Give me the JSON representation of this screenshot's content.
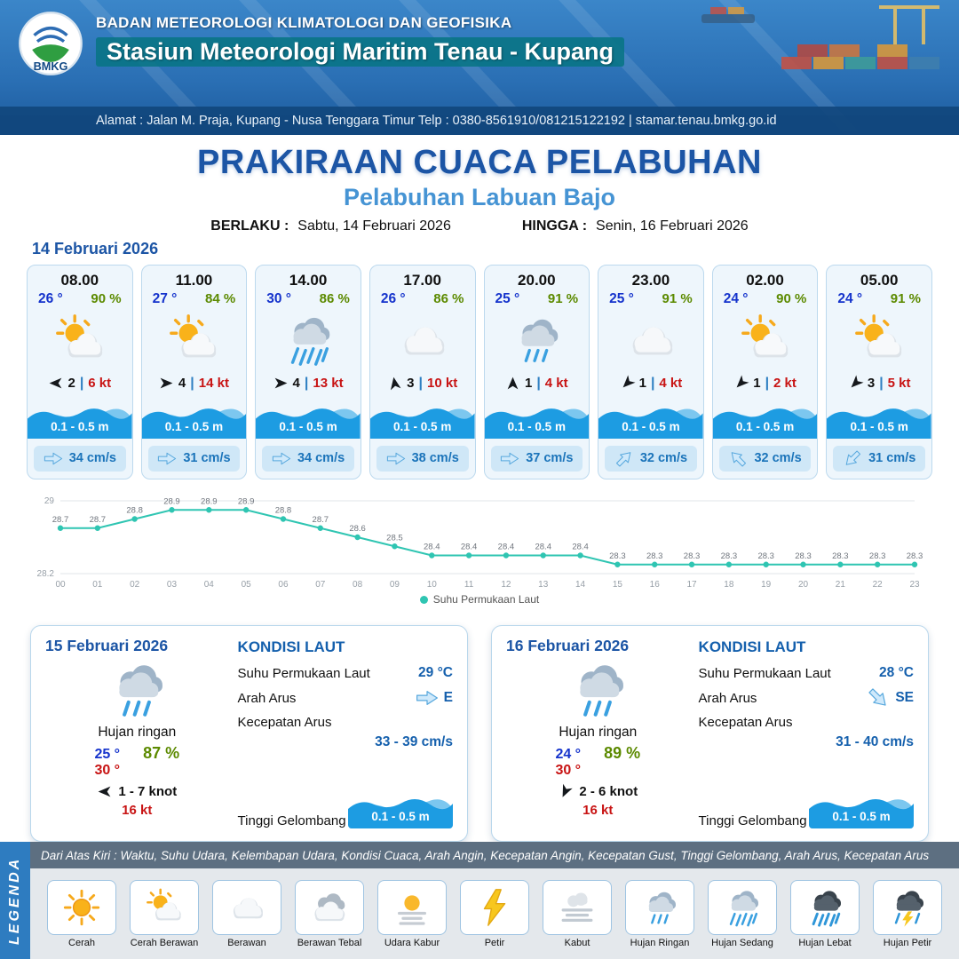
{
  "header": {
    "logo_text": "BMKG",
    "agency": "BADAN METEOROLOGI KLIMATOLOGI DAN GEOFISIKA",
    "station": "Stasiun Meteorologi Maritim Tenau - Kupang",
    "address": "Alamat : Jalan M. Praja, Kupang - Nusa Tenggara Timur Telp : 0380-8561910/081215122192  | stamar.tenau.bmkg.go.id"
  },
  "title": {
    "main": "PRAKIRAAN CUACA PELABUHAN",
    "port": "Pelabuhan Labuan Bajo",
    "valid_label": "BERLAKU :",
    "valid_value": "Sabtu, 14 Februari 2026",
    "until_label": "HINGGA :",
    "until_value": "Senin, 16 Februari 2026",
    "date_heading": "14 Februari 2026"
  },
  "misc": {
    "pipe": "|"
  },
  "colors": {
    "brand_blue": "#1c55a5",
    "port_blue": "#4694d4",
    "temp_blue": "#1533cc",
    "humidity_green": "#5c8a00",
    "wind_red": "#c81414",
    "wave_blue": "#1d9ce2",
    "current_text_blue": "#1b74ba",
    "sst_line_teal": "#2fc5b2"
  },
  "cards": [
    {
      "time": "08.00",
      "temp": "26 °",
      "humidity": "90 %",
      "icon": "cerah-berawan",
      "icon_ref": "#sym-suncloud",
      "wind_value": "2",
      "wind_speed": "6 kt",
      "wind_rot": 180,
      "wave": "0.1 - 0.5 m",
      "current": "34 cm/s",
      "current_rot": 0
    },
    {
      "time": "11.00",
      "temp": "27 °",
      "humidity": "84 %",
      "icon": "cerah-berawan",
      "icon_ref": "#sym-suncloud",
      "wind_value": "4",
      "wind_speed": "14 kt",
      "wind_rot": 0,
      "wave": "0.1 - 0.5 m",
      "current": "31 cm/s",
      "current_rot": 0
    },
    {
      "time": "14.00",
      "temp": "30 °",
      "humidity": "86 %",
      "icon": "hujan-sedang",
      "icon_ref": "#sym-rain2",
      "wind_value": "4",
      "wind_speed": "13 kt",
      "wind_rot": 0,
      "wave": "0.1 - 0.5 m",
      "current": "34 cm/s",
      "current_rot": 0
    },
    {
      "time": "17.00",
      "temp": "26 °",
      "humidity": "86 %",
      "icon": "berawan",
      "icon_ref": "#sym-cloud",
      "wind_value": "3",
      "wind_speed": "10 kt",
      "wind_rot": -100,
      "wave": "0.1 - 0.5 m",
      "current": "38 cm/s",
      "current_rot": 0
    },
    {
      "time": "20.00",
      "temp": "25 °",
      "humidity": "91 %",
      "icon": "hujan-ringan",
      "icon_ref": "#sym-rain1",
      "wind_value": "1",
      "wind_speed": "4 kt",
      "wind_rot": -90,
      "wave": "0.1 - 0.5 m",
      "current": "37 cm/s",
      "current_rot": 0
    },
    {
      "time": "23.00",
      "temp": "25 °",
      "humidity": "91 %",
      "icon": "berawan",
      "icon_ref": "#sym-cloud",
      "wind_value": "1",
      "wind_speed": "4 kt",
      "wind_rot": 135,
      "wave": "0.1 - 0.5 m",
      "current": "32 cm/s",
      "current_rot": -45
    },
    {
      "time": "02.00",
      "temp": "24 °",
      "humidity": "90 %",
      "icon": "cerah-berawan",
      "icon_ref": "#sym-suncloud",
      "wind_value": "1",
      "wind_speed": "2 kt",
      "wind_rot": 135,
      "wave": "0.1 - 0.5 m",
      "current": "32 cm/s",
      "current_rot": -135
    },
    {
      "time": "05.00",
      "temp": "24 °",
      "humidity": "91 %",
      "icon": "cerah-berawan",
      "icon_ref": "#sym-suncloud",
      "wind_value": "3",
      "wind_speed": "5 kt",
      "wind_rot": 135,
      "wave": "0.1 - 0.5 m",
      "current": "31 cm/s",
      "current_rot": 135
    }
  ],
  "chart_data": {
    "type": "line",
    "x": [
      "00",
      "01",
      "02",
      "03",
      "04",
      "05",
      "06",
      "07",
      "08",
      "09",
      "10",
      "11",
      "12",
      "13",
      "14",
      "15",
      "16",
      "17",
      "18",
      "19",
      "20",
      "21",
      "22",
      "23"
    ],
    "series": [
      {
        "name": "Suhu Permukaan Laut",
        "values": [
          28.7,
          28.7,
          28.8,
          28.9,
          28.9,
          28.9,
          28.8,
          28.7,
          28.6,
          28.5,
          28.4,
          28.4,
          28.4,
          28.4,
          28.4,
          28.3,
          28.3,
          28.3,
          28.3,
          28.3,
          28.3,
          28.3,
          28.3,
          28.3
        ]
      }
    ],
    "ylim": [
      28.2,
      29
    ],
    "line_color": "#2fc5b2",
    "legend_position": "bottom",
    "grid": "horizontal"
  },
  "daily": [
    {
      "date": "15 Februari 2026",
      "icon": "hujan-ringan",
      "icon_ref": "#sym-rain1",
      "condition": "Hujan ringan",
      "temp_min": "25 °",
      "humidity": "87 %",
      "temp_max": "30 °",
      "wind_range": "1 - 7 knot",
      "wind_rot": 180,
      "gust": "16 kt",
      "sea": {
        "heading": "KONDISI LAUT",
        "sst_label": "Suhu Permukaan Laut",
        "sst": "29 °C",
        "dir_label": "Arah Arus",
        "dir": "E",
        "dir_rot": 0,
        "speed_label": "Kecepatan Arus",
        "speed": "33 - 39 cm/s",
        "wave_label": "Tinggi Gelombang",
        "wave": "0.1 - 0.5 m"
      }
    },
    {
      "date": "16 Februari 2026",
      "icon": "hujan-ringan",
      "icon_ref": "#sym-rain1",
      "condition": "Hujan ringan",
      "temp_min": "24 °",
      "humidity": "89 %",
      "temp_max": "30 °",
      "wind_range": "2 - 6 knot",
      "wind_rot": 115,
      "gust": "16 kt",
      "sea": {
        "heading": "KONDISI LAUT",
        "sst_label": "Suhu Permukaan Laut",
        "sst": "28 °C",
        "dir_label": "Arah Arus",
        "dir": "SE",
        "dir_rot": 45,
        "speed_label": "Kecepatan Arus",
        "speed": "31 - 40 cm/s",
        "wave_label": "Tinggi Gelombang",
        "wave": "0.1 - 0.5 m"
      }
    }
  ],
  "legend": {
    "title": "LEGENDA",
    "description": "Dari Atas Kiri : Waktu, Suhu Udara, Kelembapan Udara, Kondisi Cuaca, Arah Angin, Kecepatan Angin, Kecepatan Gust, Tinggi Gelombang, Arah Arus, Kecepatan Arus",
    "items": [
      {
        "label": "Cerah",
        "icon": "cerah",
        "icon_ref": "#sym-sun"
      },
      {
        "label": "Cerah Berawan",
        "icon": "cerah-berawan",
        "icon_ref": "#sym-suncloud"
      },
      {
        "label": "Berawan",
        "icon": "berawan",
        "icon_ref": "#sym-cloud"
      },
      {
        "label": "Berawan Tebal",
        "icon": "berawan-tebal",
        "icon_ref": "#sym-thickcloud"
      },
      {
        "label": "Udara Kabur",
        "icon": "udara-kabur",
        "icon_ref": "#sym-haze"
      },
      {
        "label": "Petir",
        "icon": "petir",
        "icon_ref": "#sym-bolt"
      },
      {
        "label": "Kabut",
        "icon": "kabut",
        "icon_ref": "#sym-fog"
      },
      {
        "label": "Hujan Ringan",
        "icon": "hujan-ringan",
        "icon_ref": "#sym-rain1"
      },
      {
        "label": "Hujan Sedang",
        "icon": "hujan-sedang",
        "icon_ref": "#sym-rain2"
      },
      {
        "label": "Hujan Lebat",
        "icon": "hujan-lebat",
        "icon_ref": "#sym-rain3"
      },
      {
        "label": "Hujan Petir",
        "icon": "hujan-petir",
        "icon_ref": "#sym-rainbolt"
      }
    ]
  }
}
